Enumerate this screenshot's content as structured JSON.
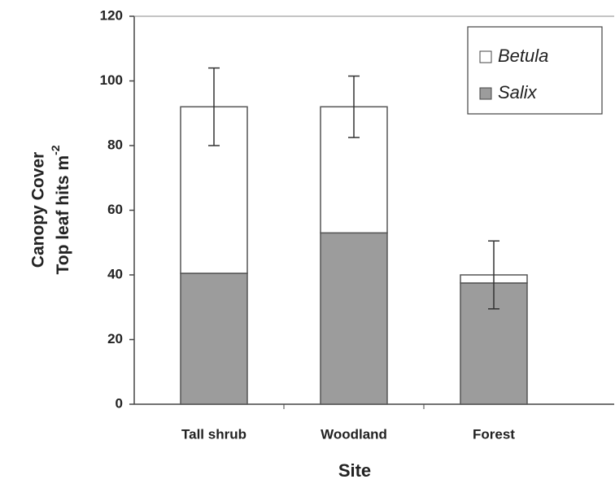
{
  "chart_data": {
    "type": "stacked_bar",
    "categories": [
      "Tall shrub",
      "Woodland",
      "Forest"
    ],
    "series": [
      {
        "name": "Betula",
        "color": "#ffffff",
        "values": [
          51.5,
          39,
          2.5
        ],
        "errors": [
          12,
          9.5,
          10.5
        ]
      },
      {
        "name": "Salix",
        "color": "#9c9c9c",
        "values": [
          40.5,
          53,
          37.5
        ]
      }
    ],
    "xlabel": "Site",
    "ylabel": "Canopy Cover",
    "ylabel2": "Top leaf hits m",
    "ylabel2_sup": "-2",
    "ylim": [
      0,
      120
    ],
    "yticks": [
      0,
      20,
      40,
      60,
      80,
      100,
      120
    ],
    "legend": "upper right"
  }
}
